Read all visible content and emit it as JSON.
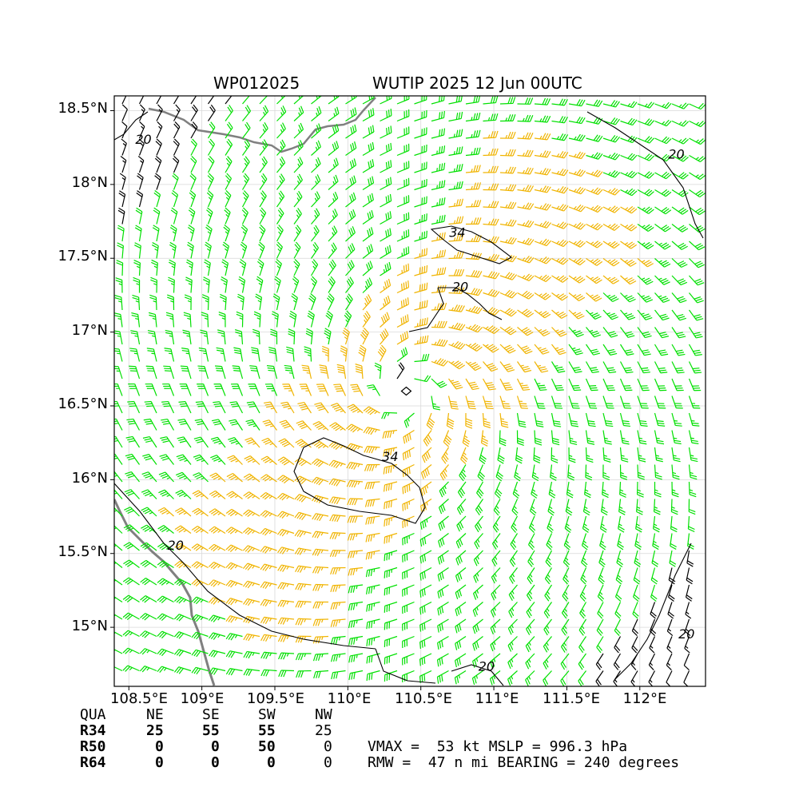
{
  "header": {
    "storm_id": "WP012025",
    "storm_info": "WUTIP 2025 12 Jun 00UTC"
  },
  "axes": {
    "lon_min": 108.4,
    "lon_max": 112.45,
    "lat_min": 14.6,
    "lat_max": 18.6,
    "x_ticks": [
      "108.5°E",
      "109°E",
      "109.5°E",
      "110°E",
      "110.5°E",
      "111°E",
      "111.5°E",
      "112°E"
    ],
    "x_tick_values": [
      108.5,
      109.0,
      109.5,
      110.0,
      110.5,
      111.0,
      111.5,
      112.0
    ],
    "y_ticks": [
      "18.5°N",
      "18°N",
      "17.5°N",
      "17°N",
      "16.5°N",
      "16°N",
      "15.5°N",
      "15°N"
    ],
    "y_tick_values": [
      18.5,
      18.0,
      17.5,
      17.0,
      16.5,
      16.0,
      15.5,
      15.0
    ],
    "grid": true
  },
  "storm": {
    "center_lon": 110.4,
    "center_lat": 16.6
  },
  "contour_labels": [
    {
      "text": "34",
      "lon": 110.75,
      "lat": 17.67
    },
    {
      "text": "20",
      "lon": 110.77,
      "lat": 17.3
    },
    {
      "text": "34",
      "lon": 110.29,
      "lat": 16.15
    },
    {
      "text": "20",
      "lon": 108.6,
      "lat": 18.3
    },
    {
      "text": "20",
      "lon": 112.25,
      "lat": 18.2
    },
    {
      "text": "20",
      "lon": 108.82,
      "lat": 15.55
    },
    {
      "text": "20",
      "lon": 112.32,
      "lat": 14.95
    },
    {
      "text": "20",
      "lon": 110.95,
      "lat": 14.73
    }
  ],
  "wind_colors": {
    "below_20": "#000000",
    "gale": "#00e000",
    "storm": "#f0b400",
    "hurricane": "#ff2000",
    "coastline": "#808080"
  },
  "wind_radii_table": {
    "headers": [
      "QUA",
      "NE",
      "SE",
      "SW",
      "NW"
    ],
    "rows": [
      {
        "label": "R34",
        "values": [
          "25",
          "55",
          "55",
          "25"
        ]
      },
      {
        "label": "R50",
        "values": [
          "0",
          "0",
          "50",
          "0"
        ]
      },
      {
        "label": "R64",
        "values": [
          "0",
          "0",
          "0",
          "0"
        ]
      }
    ]
  },
  "stats": {
    "line1": "VMAX =  53 kt MSLP = 996.3 hPa",
    "line2": "RMW =  47 n mi BEARING = 240 degrees"
  }
}
